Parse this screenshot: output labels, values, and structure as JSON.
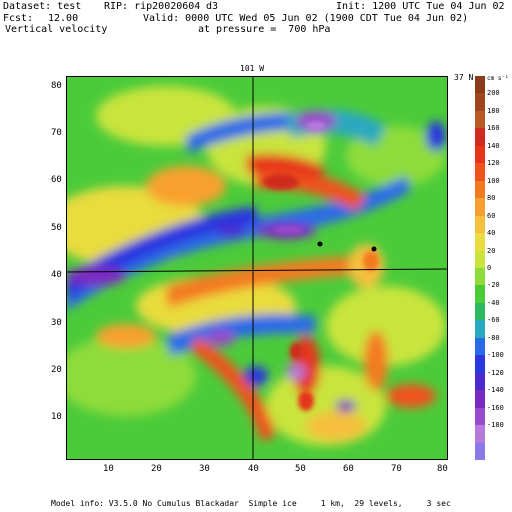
{
  "header": {
    "dataset_label": "Dataset: test",
    "rip_label": "RIP: rip20020604",
    "rip_suffix": "d3",
    "init_label": "Init: 1200 UTC Tue 04 Jun 02",
    "fcst_label": "Fcst:",
    "fcst_value": "12.00",
    "valid_label": "Valid: 0000 UTC Wed 05 Jun 02 (1900 CDT Tue 04 Jun 02)",
    "field_name": "Vertical velocity",
    "pressure_label": "at pressure =  700 hPa"
  },
  "plot": {
    "top_axis_label": "101 W",
    "right_axis_label": "37 N",
    "x_ticks": [
      "10",
      "20",
      "30",
      "40",
      "50",
      "60",
      "70",
      "80"
    ],
    "y_ticks": [
      "10",
      "20",
      "30",
      "40",
      "50",
      "60",
      "70",
      "80"
    ]
  },
  "colorbar": {
    "unit": "cm s⁻¹",
    "labels": [
      "200",
      "180",
      "160",
      "140",
      "120",
      "100",
      "80",
      "60",
      "40",
      "20",
      "0",
      "-20",
      "-40",
      "-60",
      "-80",
      "-100",
      "-120",
      "-140",
      "-160",
      "-180"
    ],
    "colors": [
      "#8B3A1A",
      "#A0461E",
      "#B85A28",
      "#CF2A1E",
      "#E6341A",
      "#F0521C",
      "#F47A22",
      "#F8A02E",
      "#F5C03C",
      "#E9DC3C",
      "#C9E43C",
      "#8EDC3A",
      "#4CCB3A",
      "#2EB860",
      "#2AA8C0",
      "#2A6AE8",
      "#2A36E0",
      "#4A2ACF",
      "#7A2AC0",
      "#9A4ACB",
      "#B57ADB",
      "#8A7AE8"
    ]
  },
  "footer": {
    "model_info": "Model info: V3.5.0 No Cumulus Blackadar  Simple ice     1 km,  29 levels,     3 sec"
  }
}
